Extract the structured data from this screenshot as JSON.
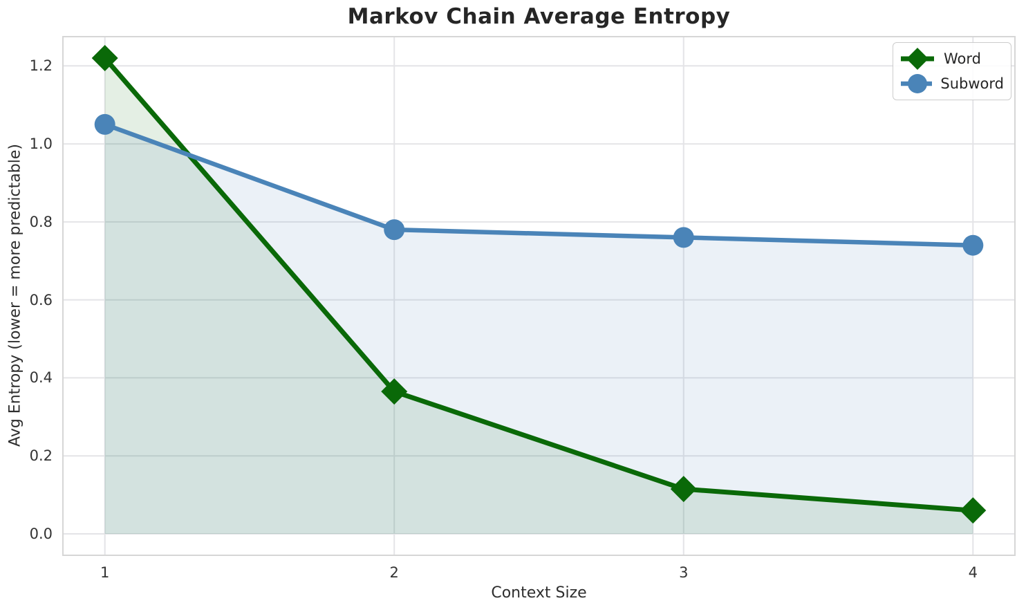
{
  "chart_data": {
    "type": "line",
    "title": "Markov Chain Average Entropy",
    "xlabel": "Context Size",
    "ylabel": "Avg Entropy (lower = more predictable)",
    "x": [
      1,
      2,
      3,
      4
    ],
    "x_tick_labels": [
      "1",
      "2",
      "3",
      "4"
    ],
    "y_tick_labels": [
      "0.0",
      "0.2",
      "0.4",
      "0.6",
      "0.8",
      "1.0",
      "1.2"
    ],
    "xlim": [
      0.855,
      4.145
    ],
    "ylim": [
      -0.055,
      1.275
    ],
    "grid": true,
    "legend_position": "upper right",
    "series": [
      {
        "name": "Word",
        "marker": "diamond",
        "color": "#0a6908",
        "fill_to_zero": true,
        "fill_alpha": 0.11,
        "values": [
          1.22,
          0.365,
          0.115,
          0.06
        ]
      },
      {
        "name": "Subword",
        "marker": "circle",
        "color": "#4a84b8",
        "fill_to_zero": true,
        "fill_alpha": 0.11,
        "values": [
          1.05,
          0.78,
          0.76,
          0.74
        ]
      }
    ]
  },
  "colors": {
    "grid": "#e4e4e7",
    "spine": "#d6d6d6",
    "title_text": "#262626",
    "tick_text": "#333333",
    "legend_border": "#cccccc"
  }
}
